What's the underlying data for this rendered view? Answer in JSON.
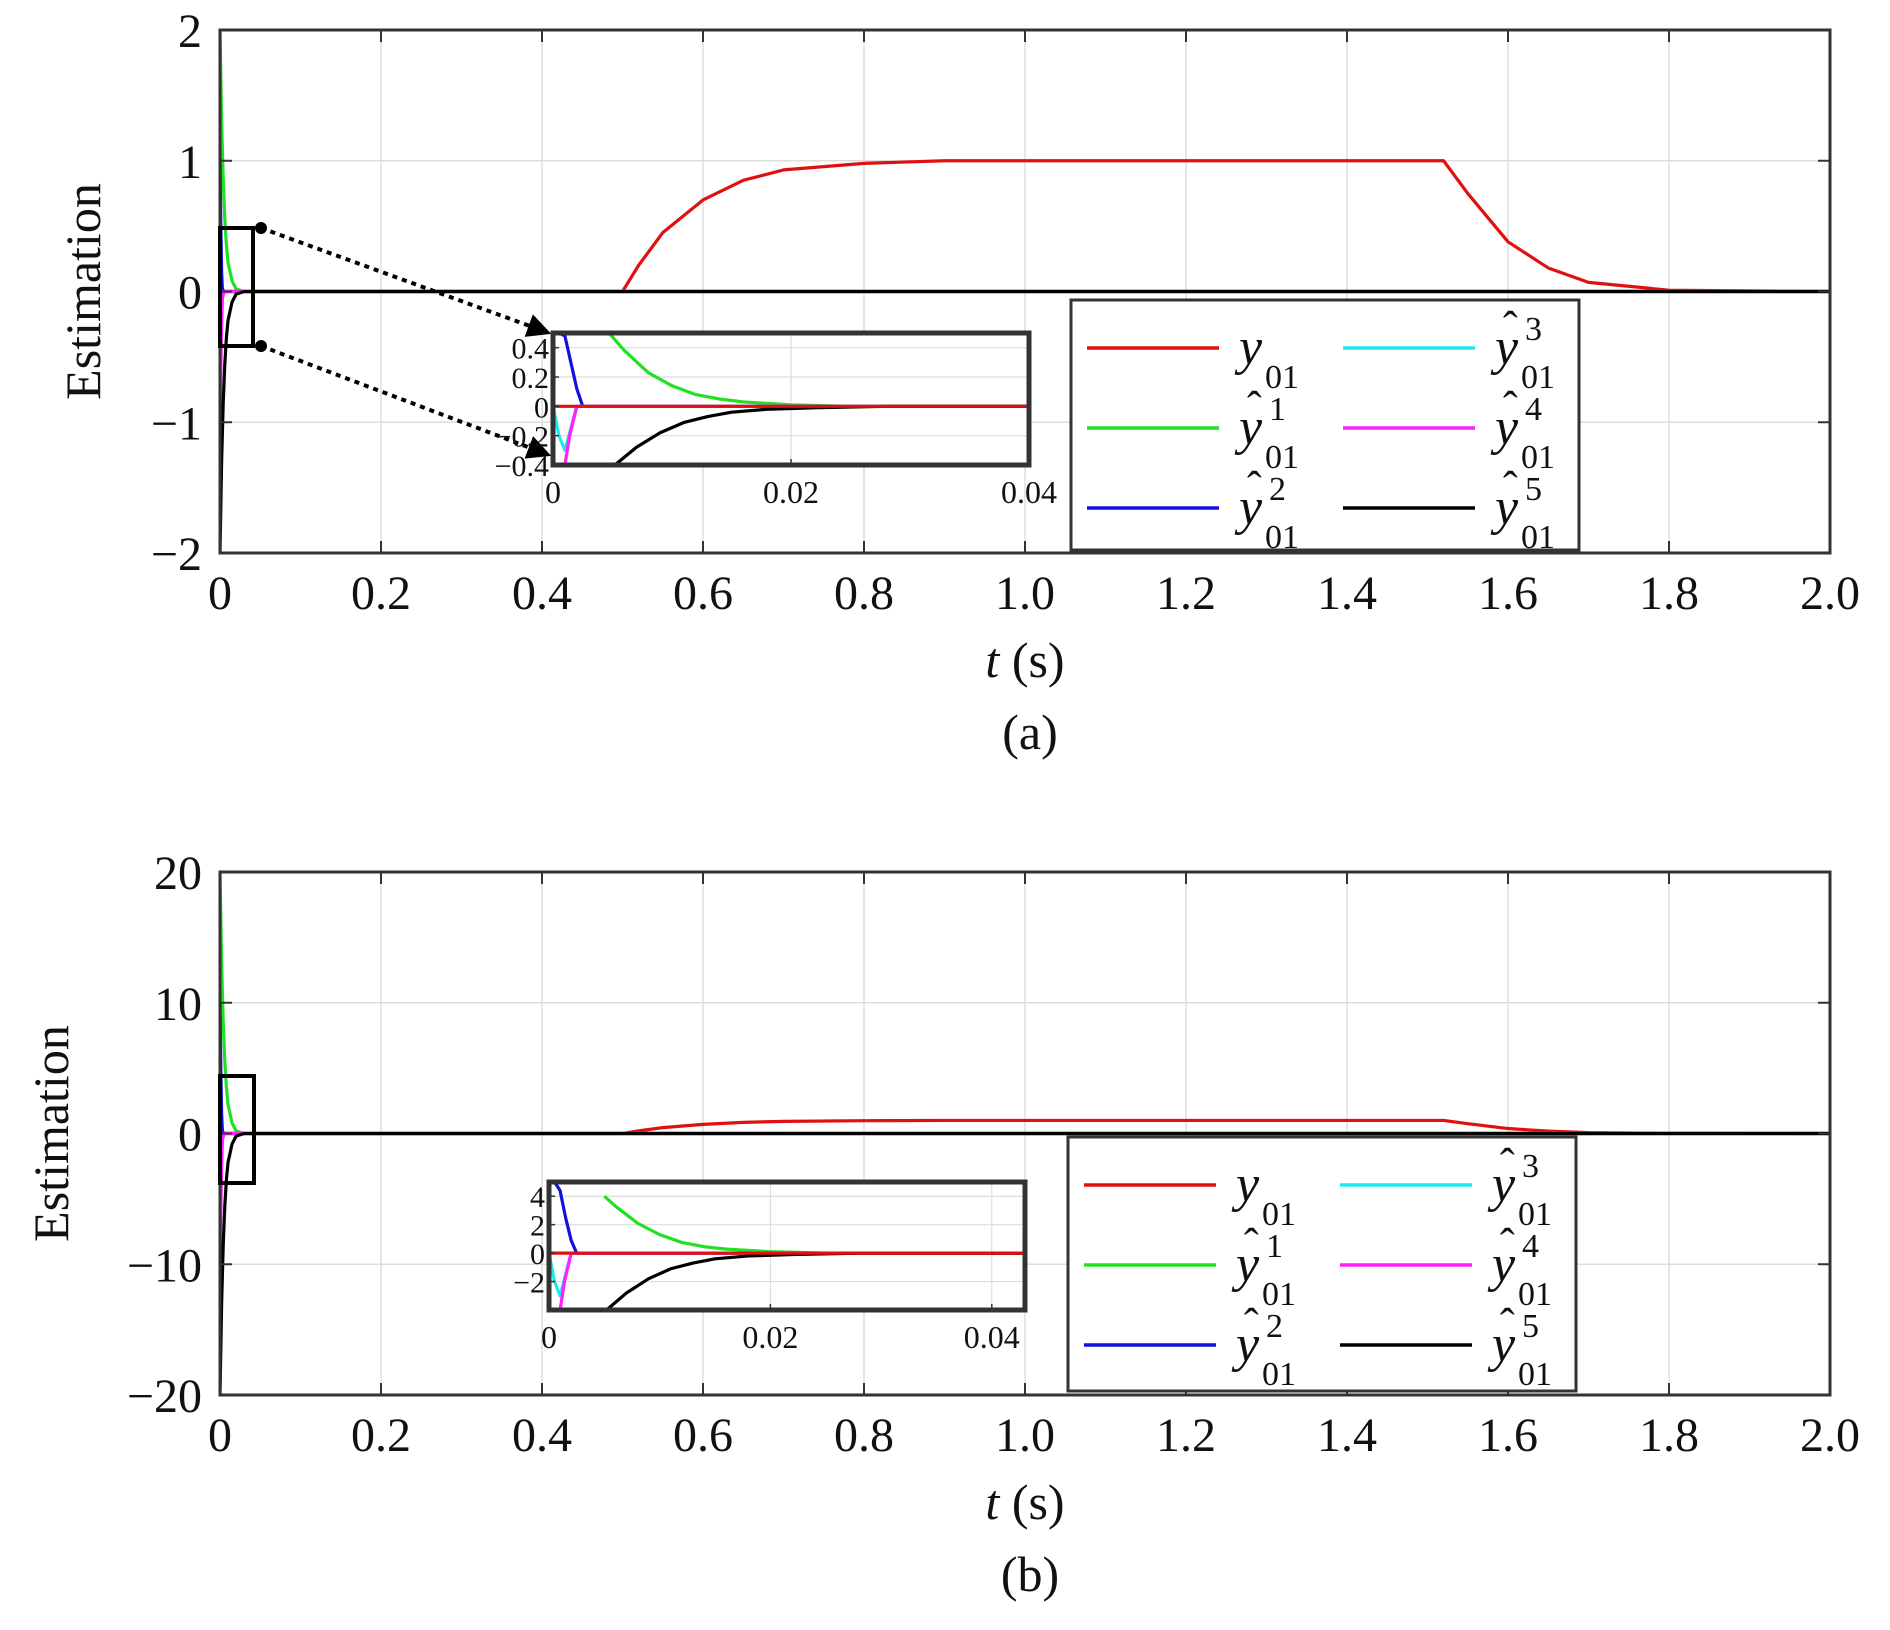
{
  "colors": {
    "y01": "#e01010",
    "yhat1": "#22e022",
    "yhat2": "#1010e0",
    "yhat3": "#20e8e8",
    "yhat4": "#ff20ff",
    "yhat5": "#000000",
    "grid": "#dddddd",
    "axes": "#333333"
  },
  "legend_entries": [
    {
      "key": "y01",
      "base": "y",
      "hat": false,
      "sup": "",
      "sub": "01"
    },
    {
      "key": "yhat1",
      "base": "y",
      "hat": true,
      "sup": "1",
      "sub": "01"
    },
    {
      "key": "yhat2",
      "base": "y",
      "hat": true,
      "sup": "2",
      "sub": "01"
    },
    {
      "key": "yhat3",
      "base": "y",
      "hat": true,
      "sup": "3",
      "sub": "01"
    },
    {
      "key": "yhat4",
      "base": "y",
      "hat": true,
      "sup": "4",
      "sub": "01"
    },
    {
      "key": "yhat5",
      "base": "y",
      "hat": true,
      "sup": "5",
      "sub": "01"
    }
  ],
  "chart_data": [
    {
      "type": "line",
      "caption": "(a)",
      "xlabel_var": "t",
      "xlabel_unit": " (s)",
      "ylabel": "Estimation",
      "xlim": [
        0,
        2.0
      ],
      "ylim": [
        -2,
        2
      ],
      "xticks": [
        0,
        0.2,
        0.4,
        0.6,
        0.8,
        1.0,
        1.2,
        1.4,
        1.6,
        1.8,
        2.0
      ],
      "xtick_labels": [
        "0",
        "0.2",
        "0.4",
        "0.6",
        "0.8",
        "1.0",
        "1.2",
        "1.4",
        "1.6",
        "1.8",
        "2.0"
      ],
      "yticks": [
        -2,
        -1,
        0,
        1,
        2
      ],
      "ytick_labels": [
        "−2",
        "−1",
        "0",
        "1",
        "2"
      ],
      "grid": true,
      "legend_position": "lower-right",
      "series": [
        {
          "key": "y01",
          "x": [
            0,
            0.5,
            0.52,
            0.55,
            0.6,
            0.65,
            0.7,
            0.8,
            0.9,
            1.0,
            1.52,
            1.55,
            1.6,
            1.65,
            1.7,
            1.8,
            2.0
          ],
          "y": [
            0,
            0,
            0.2,
            0.45,
            0.7,
            0.85,
            0.93,
            0.98,
            1.0,
            1.0,
            1.0,
            0.75,
            0.38,
            0.18,
            0.07,
            0.01,
            0
          ]
        },
        {
          "key": "yhat1",
          "x": [
            0,
            0.002,
            0.004,
            0.006,
            0.008,
            0.01,
            0.015,
            0.02,
            0.03,
            2.0
          ],
          "y": [
            2,
            1.3,
            0.85,
            0.55,
            0.35,
            0.22,
            0.08,
            0.02,
            0,
            0
          ]
        },
        {
          "key": "yhat2",
          "x": [
            0,
            0.001,
            0.002,
            0.003,
            0.005,
            2.0
          ],
          "y": [
            1,
            0.5,
            0.15,
            0.02,
            0,
            0
          ]
        },
        {
          "key": "yhat3",
          "x": [
            0,
            0.001,
            0.002,
            0.003,
            0.005,
            2.0
          ],
          "y": [
            -0.4,
            -0.3,
            -0.15,
            -0.03,
            0,
            0
          ]
        },
        {
          "key": "yhat4",
          "x": [
            0,
            0.001,
            0.002,
            0.003,
            0.005,
            2.0
          ],
          "y": [
            -1,
            -0.6,
            -0.25,
            -0.05,
            0,
            0
          ]
        },
        {
          "key": "yhat5",
          "x": [
            0,
            0.002,
            0.004,
            0.006,
            0.008,
            0.01,
            0.015,
            0.02,
            0.03,
            2.0
          ],
          "y": [
            -2,
            -1.3,
            -0.85,
            -0.55,
            -0.35,
            -0.22,
            -0.08,
            -0.02,
            0,
            0
          ]
        }
      ],
      "inset": {
        "xlim": [
          0,
          0.04
        ],
        "ylim": [
          -0.4,
          0.5
        ],
        "xticks": [
          0,
          0.02,
          0.04
        ],
        "xtick_labels": [
          "0",
          "0.02",
          "0.04"
        ],
        "yticks": [
          -0.4,
          -0.2,
          0,
          0.2,
          0.4
        ],
        "ytick_labels": [
          "−0.4",
          "−0.2",
          "0",
          "0.2",
          "0.4"
        ],
        "series": [
          {
            "key": "yhat1",
            "x": [
              0.0047,
              0.006,
              0.008,
              0.01,
              0.012,
              0.014,
              0.016,
              0.02,
              0.025,
              0.04
            ],
            "y": [
              0.5,
              0.38,
              0.23,
              0.14,
              0.08,
              0.05,
              0.03,
              0.01,
              0,
              0
            ]
          },
          {
            "key": "yhat2",
            "x": [
              0.0005,
              0.001,
              0.0015,
              0.002,
              0.0025,
              0.04
            ],
            "y": [
              0.5,
              0.48,
              0.3,
              0.12,
              0,
              0
            ]
          },
          {
            "key": "yhat3",
            "x": [
              0,
              0.0005,
              0.001,
              0.0015,
              0.002,
              0.04
            ],
            "y": [
              0,
              -0.2,
              -0.3,
              -0.15,
              0,
              0
            ]
          },
          {
            "key": "yhat4",
            "x": [
              0.0008,
              0.001,
              0.0014,
              0.002,
              0.04
            ],
            "y": [
              -0.4,
              -0.4,
              -0.2,
              0,
              0
            ]
          },
          {
            "key": "yhat5",
            "x": [
              0.0052,
              0.007,
              0.009,
              0.011,
              0.013,
              0.015,
              0.018,
              0.022,
              0.028,
              0.04
            ],
            "y": [
              -0.4,
              -0.28,
              -0.18,
              -0.11,
              -0.07,
              -0.04,
              -0.02,
              -0.01,
              0,
              0
            ]
          },
          {
            "key": "y01",
            "x": [
              0,
              0.04
            ],
            "y": [
              0,
              0
            ]
          }
        ]
      }
    },
    {
      "type": "line",
      "caption": "(b)",
      "xlabel_var": "t",
      "xlabel_unit": " (s)",
      "ylabel": "Estimation",
      "xlim": [
        0,
        2.0
      ],
      "ylim": [
        -20,
        20
      ],
      "xticks": [
        0,
        0.2,
        0.4,
        0.6,
        0.8,
        1.0,
        1.2,
        1.4,
        1.6,
        1.8,
        2.0
      ],
      "xtick_labels": [
        "0",
        "0.2",
        "0.4",
        "0.6",
        "0.8",
        "1.0",
        "1.2",
        "1.4",
        "1.6",
        "1.8",
        "2.0"
      ],
      "yticks": [
        -20,
        -10,
        0,
        10,
        20
      ],
      "ytick_labels": [
        "−20",
        "−10",
        "0",
        "10",
        "20"
      ],
      "grid": true,
      "legend_position": "lower-right",
      "series": [
        {
          "key": "y01",
          "x": [
            0,
            0.5,
            0.52,
            0.55,
            0.6,
            0.65,
            0.7,
            0.8,
            0.9,
            1.0,
            1.52,
            1.55,
            1.6,
            1.65,
            1.7,
            1.8,
            2.0
          ],
          "y": [
            0,
            0,
            0.2,
            0.45,
            0.7,
            0.85,
            0.93,
            0.98,
            1.0,
            1.0,
            1.0,
            0.75,
            0.38,
            0.18,
            0.07,
            0.01,
            0
          ]
        },
        {
          "key": "yhat1",
          "x": [
            0,
            0.002,
            0.004,
            0.006,
            0.008,
            0.01,
            0.015,
            0.02,
            0.03,
            2.0
          ],
          "y": [
            20,
            13,
            8.5,
            5.5,
            3.5,
            2.2,
            0.8,
            0.2,
            0,
            0
          ]
        },
        {
          "key": "yhat2",
          "x": [
            0,
            0.001,
            0.002,
            0.003,
            0.005,
            2.0
          ],
          "y": [
            10,
            5,
            1.5,
            0.2,
            0,
            0
          ]
        },
        {
          "key": "yhat3",
          "x": [
            0,
            0.001,
            0.002,
            0.003,
            0.005,
            2.0
          ],
          "y": [
            -4,
            -3,
            -1.5,
            -0.3,
            0,
            0
          ]
        },
        {
          "key": "yhat4",
          "x": [
            0,
            0.001,
            0.002,
            0.003,
            0.005,
            2.0
          ],
          "y": [
            -10,
            -6,
            -2.5,
            -0.5,
            0,
            0
          ]
        },
        {
          "key": "yhat5",
          "x": [
            0,
            0.002,
            0.004,
            0.006,
            0.008,
            0.01,
            0.015,
            0.02,
            0.03,
            2.0
          ],
          "y": [
            -20,
            -13,
            -8.5,
            -5.5,
            -3.5,
            -2.2,
            -0.8,
            -0.2,
            0,
            0
          ]
        }
      ],
      "inset": {
        "xlim": [
          0,
          0.043
        ],
        "ylim": [
          -4,
          5
        ],
        "xticks": [
          0,
          0.02,
          0.04
        ],
        "xtick_labels": [
          "0",
          "0.02",
          "0.04"
        ],
        "yticks": [
          -2,
          0,
          2,
          4
        ],
        "ytick_labels": [
          "−2",
          "0",
          "2",
          "4"
        ],
        "series": [
          {
            "key": "yhat1",
            "x": [
              0.005,
              0.006,
              0.008,
              0.01,
              0.012,
              0.014,
              0.016,
              0.02,
              0.025,
              0.043
            ],
            "y": [
              4,
              3.3,
              2.1,
              1.3,
              0.75,
              0.45,
              0.28,
              0.1,
              0,
              0
            ]
          },
          {
            "key": "yhat2",
            "x": [
              0.0005,
              0.001,
              0.0015,
              0.002,
              0.0025,
              0.043
            ],
            "y": [
              5,
              4.4,
              2.5,
              0.9,
              0,
              0
            ]
          },
          {
            "key": "yhat3",
            "x": [
              0,
              0.0005,
              0.001,
              0.0015,
              0.002,
              0.043
            ],
            "y": [
              0,
              -2,
              -3,
              -1.5,
              0,
              0
            ]
          },
          {
            "key": "yhat4",
            "x": [
              0.0008,
              0.001,
              0.0014,
              0.002,
              0.043
            ],
            "y": [
              -4,
              -4,
              -2,
              0,
              0
            ]
          },
          {
            "key": "yhat5",
            "x": [
              0.0052,
              0.007,
              0.009,
              0.011,
              0.013,
              0.015,
              0.018,
              0.022,
              0.028,
              0.043
            ],
            "y": [
              -4,
              -2.8,
              -1.8,
              -1.1,
              -0.7,
              -0.4,
              -0.2,
              -0.1,
              0,
              0
            ]
          },
          {
            "key": "y01",
            "x": [
              0,
              0.043
            ],
            "y": [
              0,
              0
            ]
          }
        ]
      }
    }
  ]
}
